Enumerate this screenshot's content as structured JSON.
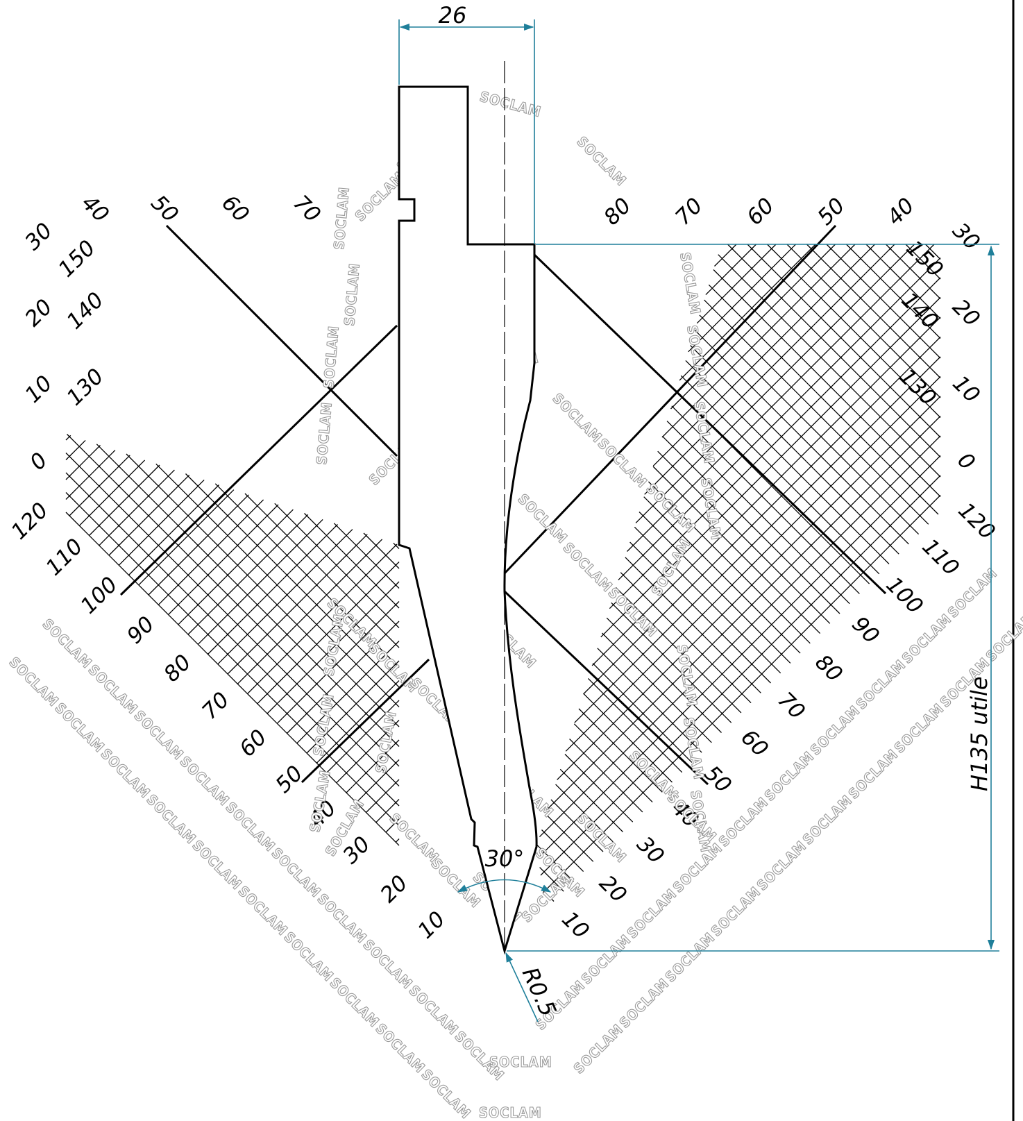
{
  "drawing": {
    "width_label": "26",
    "height_label": "H135 utile",
    "angle_label": "30°",
    "radius_label": "R0.5",
    "watermark": "SOCLAM",
    "colors": {
      "line": "#000000",
      "dimension": "#1f7f9a",
      "watermark": "#9a9a9a"
    }
  },
  "left_scale": {
    "upper_ticks": [
      "40",
      "50",
      "60",
      "70"
    ],
    "left_ticks": [
      "30",
      "20",
      "10",
      "0",
      "120",
      "110",
      "100"
    ],
    "inner_ticks": [
      "150",
      "140",
      "130"
    ],
    "lower_ticks": [
      "90",
      "80",
      "70",
      "60",
      "50",
      "40",
      "30",
      "20",
      "10"
    ]
  },
  "right_scale": {
    "upper_ticks": [
      "80",
      "70",
      "60",
      "50",
      "40"
    ],
    "right_ticks": [
      "30",
      "20",
      "10",
      "0",
      "120",
      "110",
      "100"
    ],
    "inner_ticks": [
      "150",
      "140",
      "130"
    ],
    "lower_ticks": [
      "90",
      "80",
      "70",
      "60",
      "50",
      "40",
      "30",
      "20",
      "10"
    ]
  }
}
